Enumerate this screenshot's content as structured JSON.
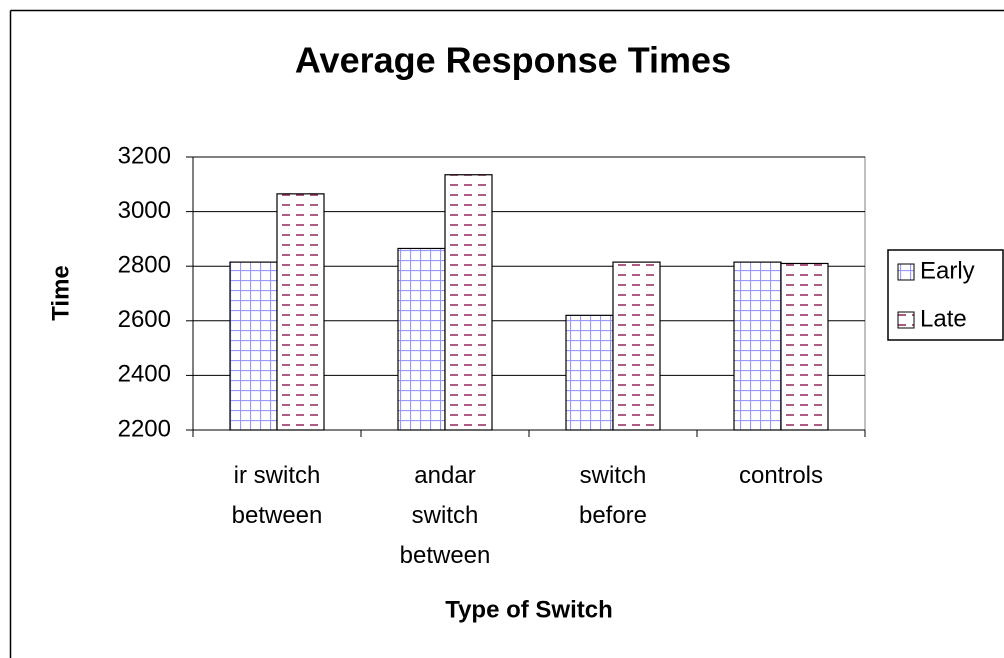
{
  "chart_data": {
    "type": "bar",
    "title": "Average Response Times",
    "x_label": "Type of Switch",
    "y_label": "Time",
    "categories": [
      "ir switch\nbetween",
      "andar\nswitch\nbetween",
      "switch\nbefore",
      "controls"
    ],
    "series": [
      {
        "name": "Early",
        "color": "#9999ff",
        "values": [
          2815,
          2865,
          2620,
          2815
        ]
      },
      {
        "name": "Late",
        "color": "#993366",
        "values": [
          3065,
          3135,
          2815,
          2810
        ]
      }
    ],
    "ylim": [
      2200,
      3200
    ],
    "yticks": [
      2200,
      2400,
      2600,
      2800,
      3000,
      3200
    ],
    "grid": true,
    "legend": "right"
  }
}
